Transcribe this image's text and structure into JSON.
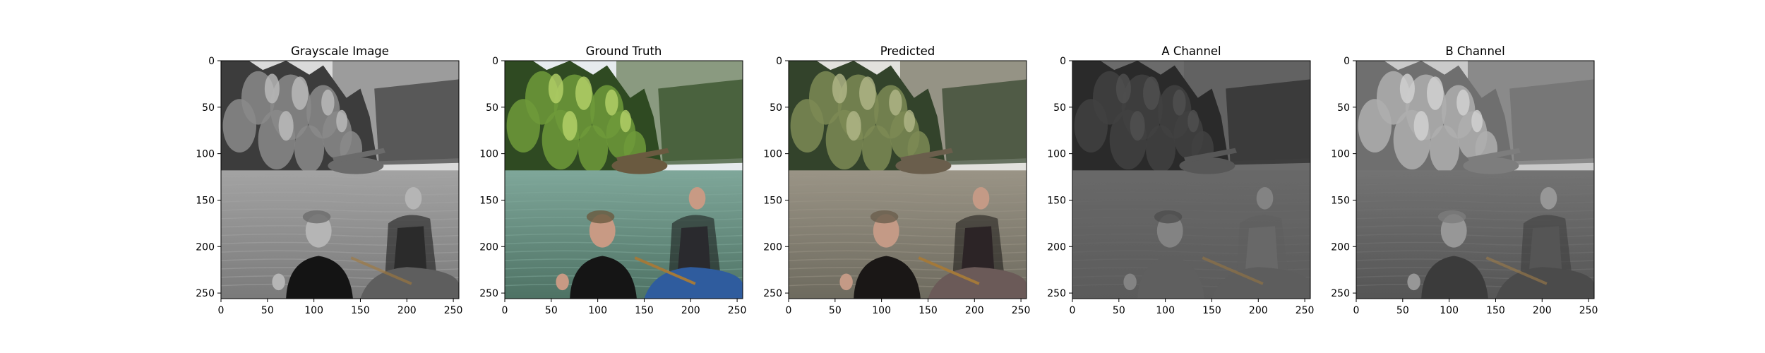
{
  "chart_data": [
    {
      "type": "image",
      "title": "Grayscale Image",
      "image_kind": "grayscale photo",
      "xlim": [
        0,
        256
      ],
      "ylim": [
        256,
        0
      ],
      "xticks": [
        0,
        50,
        100,
        150,
        200,
        250
      ],
      "yticks": [
        0,
        50,
        100,
        150,
        200,
        250
      ]
    },
    {
      "type": "image",
      "title": "Ground Truth",
      "image_kind": "color photo",
      "xlim": [
        0,
        256
      ],
      "ylim": [
        256,
        0
      ],
      "xticks": [
        0,
        50,
        100,
        150,
        200,
        250
      ],
      "yticks": [
        0,
        50,
        100,
        150,
        200,
        250
      ]
    },
    {
      "type": "image",
      "title": "Predicted",
      "image_kind": "colorized photo",
      "xlim": [
        0,
        256
      ],
      "ylim": [
        256,
        0
      ],
      "xticks": [
        0,
        50,
        100,
        150,
        200,
        250
      ],
      "yticks": [
        0,
        50,
        100,
        150,
        200,
        250
      ]
    },
    {
      "type": "image",
      "title": "A Channel",
      "image_kind": "channel map",
      "xlim": [
        0,
        256
      ],
      "ylim": [
        256,
        0
      ],
      "xticks": [
        0,
        50,
        100,
        150,
        200,
        250
      ],
      "yticks": [
        0,
        50,
        100,
        150,
        200,
        250
      ]
    },
    {
      "type": "image",
      "title": "B Channel",
      "image_kind": "channel map",
      "xlim": [
        0,
        256
      ],
      "ylim": [
        256,
        0
      ],
      "xticks": [
        0,
        50,
        100,
        150,
        200,
        250
      ],
      "yticks": [
        0,
        50,
        100,
        150,
        200,
        250
      ]
    }
  ],
  "colors": {
    "sky": "#e6ebee",
    "forest_dark": "#2f4a22",
    "forest_light": "#6f9a3a",
    "water": "#4e7264",
    "shirt": "#151515",
    "skin": "#c89a84",
    "raft": "#2f5c9e"
  }
}
